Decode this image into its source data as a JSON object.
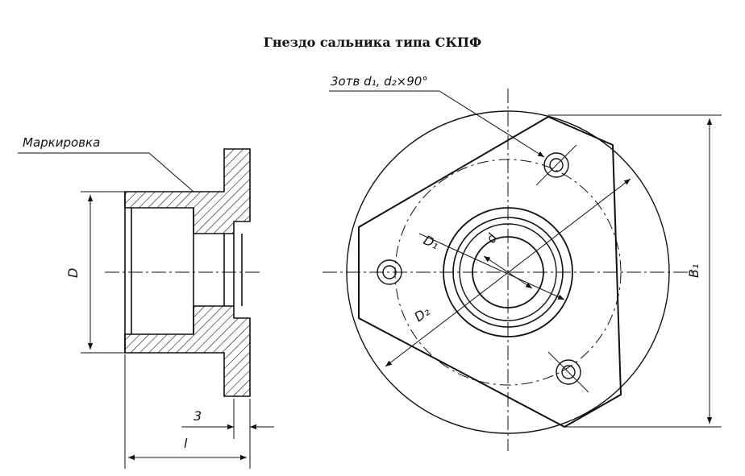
{
  "title": "Гнездо сальника типа СКПФ",
  "labels": {
    "marking": "Маркировка",
    "holes": "3отв d₁, d₂×90°",
    "dim_D": "D",
    "dim_l": "l",
    "dim_3": "3",
    "dim_D1": "D₁",
    "dim_D2": "D₂",
    "dim_d": "d",
    "dim_B1": "B₁"
  },
  "colors": {
    "ink": "#111111",
    "paper": "#ffffff"
  }
}
